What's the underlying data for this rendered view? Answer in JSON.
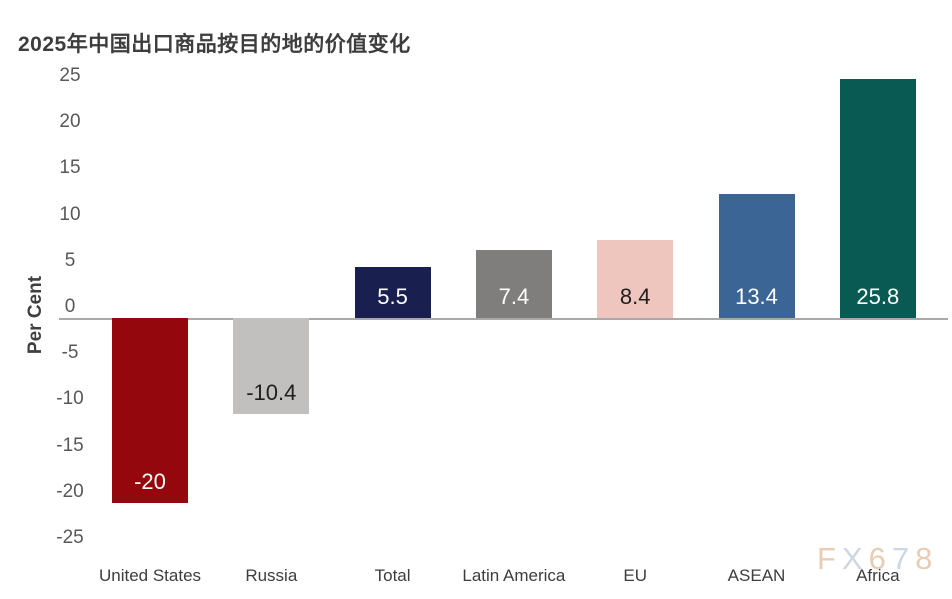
{
  "chart_data": {
    "type": "bar",
    "title": "2025年中国出口商品按目的地的价值变化",
    "xlabel": "",
    "ylabel": "Per Cent",
    "categories": [
      "United States",
      "Russia",
      "Total",
      "Latin America",
      "EU",
      "ASEAN",
      "Africa"
    ],
    "values": [
      -20,
      -10.4,
      5.5,
      7.4,
      8.4,
      13.4,
      25.8
    ],
    "value_labels": [
      "-20",
      "-10.4",
      "5.5",
      "7.4",
      "8.4",
      "13.4",
      "25.8"
    ],
    "bar_colors": [
      "#94080d",
      "#c1c0bf",
      "#192050",
      "#7f7e7d",
      "#eec6be",
      "#3a6594",
      "#0a5a54"
    ],
    "value_label_colors": [
      "#ffffff",
      "#1f1f1f",
      "#ffffff",
      "#ffffff",
      "#1f1f1f",
      "#ffffff",
      "#ffffff"
    ],
    "ylim": [
      -25,
      25
    ],
    "yticks": [
      25,
      20,
      15,
      10,
      5,
      0,
      -5,
      -10,
      -15,
      -20,
      -25
    ],
    "grid": false,
    "legend": false,
    "axis_color": "#a9a9a9"
  },
  "watermark": {
    "text": "FX678",
    "letter_colors": [
      "#e9ccb4",
      "#ccd7e2",
      "#e9ccb4",
      "#ccd7e2",
      "#e9ccb4"
    ]
  }
}
